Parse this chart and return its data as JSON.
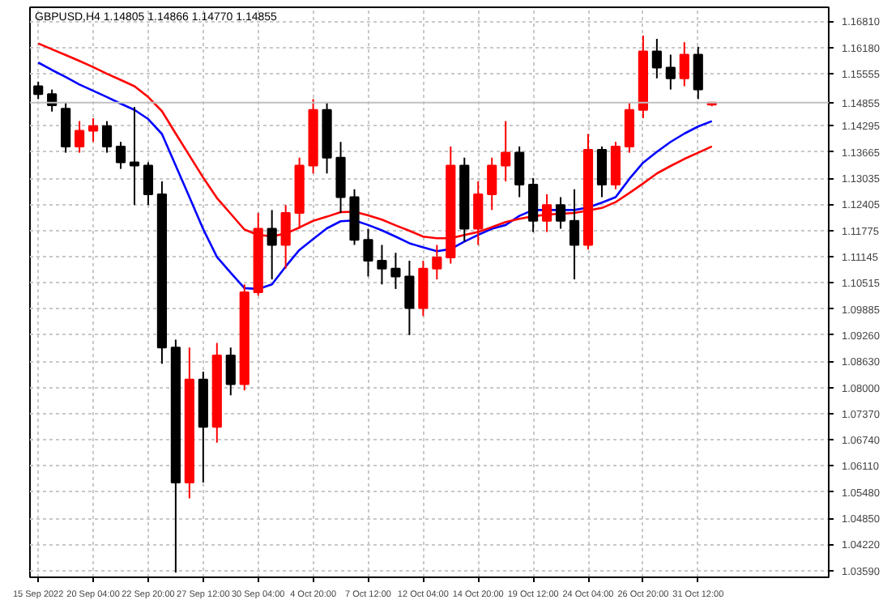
{
  "chart_data": {
    "type": "candlestick",
    "title": "GBPUSD,H4  1.14805 1.14866 1.14770 1.14855",
    "categories": [
      "15 Sep 2022",
      null,
      null,
      null,
      "20 Sep 04:00",
      null,
      null,
      null,
      "22 Sep 20:00",
      null,
      null,
      null,
      "27 Sep 12:00",
      null,
      null,
      null,
      "30 Sep 04:00",
      null,
      null,
      null,
      "4 Oct 20:00",
      null,
      null,
      null,
      "7 Oct 12:00",
      null,
      null,
      null,
      "12 Oct 04:00",
      null,
      null,
      null,
      "14 Oct 20:00",
      null,
      null,
      null,
      "19 Oct 12:00",
      null,
      null,
      null,
      "24 Oct 04:00",
      null,
      null,
      null,
      "26 Oct 20:00",
      null,
      null,
      null,
      "31 Oct 12:00",
      null
    ],
    "ohlc": [
      [
        1.1525,
        1.1536,
        1.1494,
        1.1506
      ],
      [
        1.1506,
        1.1517,
        1.1464,
        1.1479
      ],
      [
        1.1471,
        1.1487,
        1.1365,
        1.138
      ],
      [
        1.138,
        1.1441,
        1.1365,
        1.1418
      ],
      [
        1.1418,
        1.1448,
        1.1391,
        1.1429
      ],
      [
        1.1429,
        1.1441,
        1.1365,
        1.138
      ],
      [
        1.138,
        1.1391,
        1.1326,
        1.1342
      ],
      [
        1.1342,
        1.1475,
        1.1239,
        1.1334
      ],
      [
        1.1334,
        1.1342,
        1.1239,
        1.1265
      ],
      [
        1.1265,
        1.1296,
        1.0857,
        1.0896
      ],
      [
        1.0896,
        1.0915,
        1.0354,
        1.0571
      ],
      [
        1.0571,
        1.0896,
        1.0533,
        1.0819
      ],
      [
        1.0819,
        1.0838,
        1.0571,
        1.0705
      ],
      [
        1.0705,
        1.0907,
        1.0667,
        1.0877
      ],
      [
        1.0877,
        1.0896,
        1.0781,
        1.0808
      ],
      [
        1.0808,
        1.1048,
        1.0793,
        1.1029
      ],
      [
        1.1029,
        1.122,
        1.1021,
        1.1182
      ],
      [
        1.1182,
        1.1227,
        1.106,
        1.1143
      ],
      [
        1.1143,
        1.1239,
        1.1086,
        1.122
      ],
      [
        1.122,
        1.1353,
        1.1182,
        1.1334
      ],
      [
        1.1334,
        1.1494,
        1.1315,
        1.1468
      ],
      [
        1.1468,
        1.1487,
        1.1315,
        1.1353
      ],
      [
        1.1353,
        1.1391,
        1.122,
        1.1258
      ],
      [
        1.1258,
        1.1277,
        1.1143,
        1.1155
      ],
      [
        1.1155,
        1.1182,
        1.1067,
        1.1105
      ],
      [
        1.1105,
        1.1143,
        1.1048,
        1.1086
      ],
      [
        1.1086,
        1.1124,
        1.1037,
        1.1067
      ],
      [
        1.1067,
        1.1105,
        1.0926,
        1.0991
      ],
      [
        1.0991,
        1.1105,
        1.0972,
        1.1086
      ],
      [
        1.1086,
        1.1143,
        1.106,
        1.1113
      ],
      [
        1.1113,
        1.138,
        1.1098,
        1.1334
      ],
      [
        1.1334,
        1.1353,
        1.1151,
        1.1182
      ],
      [
        1.1182,
        1.1296,
        1.1143,
        1.1265
      ],
      [
        1.1265,
        1.1353,
        1.1227,
        1.1334
      ],
      [
        1.1334,
        1.1441,
        1.1296,
        1.1365
      ],
      [
        1.1365,
        1.138,
        1.1258,
        1.1288
      ],
      [
        1.1288,
        1.1304,
        1.1174,
        1.1201
      ],
      [
        1.1201,
        1.1265,
        1.1174,
        1.1239
      ],
      [
        1.1239,
        1.1258,
        1.1182,
        1.1201
      ],
      [
        1.1201,
        1.1277,
        1.106,
        1.1143
      ],
      [
        1.1143,
        1.141,
        1.1132,
        1.1372
      ],
      [
        1.1372,
        1.138,
        1.1258,
        1.1288
      ],
      [
        1.1288,
        1.1391,
        1.1277,
        1.138
      ],
      [
        1.138,
        1.1487,
        1.1365,
        1.1468
      ],
      [
        1.1468,
        1.1647,
        1.1448,
        1.1609
      ],
      [
        1.1609,
        1.1639,
        1.1544,
        1.157
      ],
      [
        1.157,
        1.1601,
        1.1517,
        1.1544
      ],
      [
        1.1544,
        1.1631,
        1.1525,
        1.1601
      ],
      [
        1.1601,
        1.162,
        1.1494,
        1.1517
      ],
      [
        1.14805,
        1.14866,
        1.1477,
        1.14855
      ]
    ],
    "colors": [
      "#000000",
      "#000000",
      "#000000",
      "#ff0000",
      "#ff0000",
      "#000000",
      "#000000",
      "#000000",
      "#000000",
      "#000000",
      "#000000",
      "#ff0000",
      "#000000",
      "#ff0000",
      "#000000",
      "#ff0000",
      "#ff0000",
      "#000000",
      "#ff0000",
      "#ff0000",
      "#ff0000",
      "#000000",
      "#000000",
      "#000000",
      "#000000",
      "#000000",
      "#000000",
      "#000000",
      "#ff0000",
      "#ff0000",
      "#ff0000",
      "#000000",
      "#ff0000",
      "#ff0000",
      "#ff0000",
      "#000000",
      "#000000",
      "#ff0000",
      "#000000",
      "#000000",
      "#ff0000",
      "#000000",
      "#ff0000",
      "#ff0000",
      "#ff0000",
      "#000000",
      "#000000",
      "#ff0000",
      "#000000",
      "#ff0000"
    ],
    "series": [
      {
        "type": "line",
        "color": "#0000ff",
        "values": [
          1.1582,
          1.1564,
          1.1547,
          1.1529,
          1.1514,
          1.1499,
          1.1483,
          1.1468,
          1.1446,
          1.141,
          1.1334,
          1.1258,
          1.1181,
          1.1114,
          1.1076,
          1.1039,
          1.1037,
          1.1048,
          1.1091,
          1.1131,
          1.1157,
          1.1183,
          1.12,
          1.1202,
          1.1191,
          1.1178,
          1.1163,
          1.1147,
          1.1137,
          1.1128,
          1.1133,
          1.1151,
          1.1167,
          1.1182,
          1.1191,
          1.1213,
          1.1227,
          1.1227,
          1.1227,
          1.1227,
          1.1233,
          1.1245,
          1.1258,
          1.1302,
          1.1341,
          1.1367,
          1.1391,
          1.1411,
          1.1428,
          1.1441
        ]
      },
      {
        "type": "line",
        "color": "#ff0000",
        "values": [
          1.1628,
          1.1614,
          1.16,
          1.1586,
          1.1571,
          1.1555,
          1.154,
          1.1525,
          1.1499,
          1.1465,
          1.1411,
          1.1358,
          1.1305,
          1.1256,
          1.1218,
          1.118,
          1.1167,
          1.1164,
          1.117,
          1.1185,
          1.1201,
          1.1211,
          1.1222,
          1.1223,
          1.1214,
          1.1204,
          1.119,
          1.1177,
          1.1163,
          1.1159,
          1.1159,
          1.1167,
          1.1174,
          1.1186,
          1.1198,
          1.1206,
          1.1212,
          1.1216,
          1.1218,
          1.122,
          1.1226,
          1.1232,
          1.1246,
          1.1268,
          1.1291,
          1.1315,
          1.1333,
          1.135,
          1.1365,
          1.138
        ]
      }
    ],
    "ylim": [
      1.0343,
      1.1715
    ],
    "yticks": [
      {
        "value": 1.1681,
        "label": "1.16810"
      },
      {
        "value": 1.1618,
        "label": "1.16180"
      },
      1.15555,
      1.14295,
      1.13665,
      1.13035,
      1.12405,
      1.11775,
      1.11145,
      1.10515,
      1.09885,
      {
        "value": 1.0926,
        "label": "1.09260"
      },
      {
        "value": 1.0863,
        "label": "1.08630"
      },
      {
        "value": 1.08,
        "label": "1.08000"
      },
      {
        "value": 1.0737,
        "label": "1.07370"
      },
      {
        "value": 1.0674,
        "label": "1.06740"
      },
      {
        "value": 1.0611,
        "label": "1.06110"
      },
      {
        "value": 1.0548,
        "label": "1.05480"
      },
      {
        "value": 1.0485,
        "label": "1.04850"
      },
      {
        "value": 1.0422,
        "label": "1.04220"
      },
      {
        "value": 1.0359,
        "label": "1.03590"
      }
    ],
    "ref_lines": [
      {
        "axis": "y",
        "value": 1.14855,
        "label": "1.14855",
        "color": "#c0c0c0"
      }
    ],
    "grid": true
  }
}
